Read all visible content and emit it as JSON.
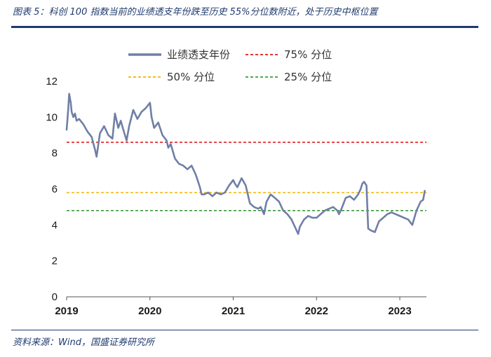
{
  "header": {
    "title": "图表 5：科创 100 指数当前的业绩透支年份跌至历史 55%分位数附近，处于历史中枢位置"
  },
  "footer": {
    "source": "资料来源：Wind，国盛证券研究所"
  },
  "colors": {
    "series": "#6f7fa6",
    "p75": "#e11a1a",
    "p50": "#f5b400",
    "p25": "#3a9a3a",
    "title": "#1f3a6e"
  },
  "chart_data": {
    "type": "line",
    "title": "图表 5：科创 100 指数当前的业绩透支年份跌至历史 55%分位数附近，处于历史中枢位置",
    "xlabel": "",
    "ylabel": "",
    "xlim": [
      2019.0,
      2023.32
    ],
    "ylim": [
      0,
      12
    ],
    "yticks": [
      0,
      2,
      4,
      6,
      8,
      10,
      12
    ],
    "xticks": [
      "2019",
      "2020",
      "2021",
      "2022",
      "2023"
    ],
    "grid": false,
    "legend_position": "top",
    "series": [
      {
        "name": "业绩透支年份",
        "x": [
          2019.0,
          2019.02,
          2019.03,
          2019.05,
          2019.06,
          2019.08,
          2019.1,
          2019.12,
          2019.15,
          2019.2,
          2019.25,
          2019.3,
          2019.34,
          2019.36,
          2019.4,
          2019.45,
          2019.5,
          2019.55,
          2019.58,
          2019.62,
          2019.65,
          2019.68,
          2019.72,
          2019.75,
          2019.8,
          2019.85,
          2019.9,
          2019.95,
          2020.0,
          2020.02,
          2020.05,
          2020.1,
          2020.15,
          2020.2,
          2020.22,
          2020.25,
          2020.3,
          2020.35,
          2020.4,
          2020.45,
          2020.5,
          2020.55,
          2020.6,
          2020.62,
          2020.65,
          2020.7,
          2020.75,
          2020.8,
          2020.85,
          2020.9,
          2020.95,
          2021.0,
          2021.02,
          2021.05,
          2021.08,
          2021.1,
          2021.15,
          2021.2,
          2021.25,
          2021.3,
          2021.33,
          2021.37,
          2021.4,
          2021.45,
          2021.5,
          2021.55,
          2021.6,
          2021.65,
          2021.7,
          2021.72,
          2021.75,
          2021.78,
          2021.8,
          2021.85,
          2021.9,
          2021.95,
          2022.0,
          2022.05,
          2022.1,
          2022.15,
          2022.2,
          2022.25,
          2022.27,
          2022.3,
          2022.35,
          2022.4,
          2022.45,
          2022.5,
          2022.53,
          2022.55,
          2022.57,
          2022.6,
          2022.62,
          2022.65,
          2022.7,
          2022.75,
          2022.8,
          2022.85,
          2022.9,
          2022.95,
          2023.0,
          2023.05,
          2023.1,
          2023.15,
          2023.2,
          2023.25,
          2023.28,
          2023.3
        ],
        "values": [
          9.3,
          10.5,
          11.3,
          10.8,
          10.3,
          10.0,
          10.2,
          9.8,
          9.9,
          9.6,
          9.2,
          8.9,
          8.2,
          7.8,
          9.1,
          9.5,
          9.0,
          8.8,
          10.2,
          9.4,
          9.8,
          9.3,
          8.7,
          9.5,
          10.4,
          9.9,
          10.3,
          10.5,
          10.8,
          10.0,
          9.4,
          9.7,
          9.0,
          8.7,
          8.3,
          8.5,
          7.7,
          7.4,
          7.3,
          7.1,
          7.3,
          6.8,
          6.1,
          5.7,
          5.7,
          5.8,
          5.6,
          5.8,
          5.7,
          5.8,
          6.2,
          6.5,
          6.3,
          6.1,
          6.4,
          6.6,
          6.2,
          5.2,
          5.0,
          4.9,
          5.0,
          4.6,
          5.3,
          5.7,
          5.5,
          5.3,
          4.8,
          4.6,
          4.3,
          4.1,
          3.8,
          3.5,
          3.9,
          4.3,
          4.5,
          4.4,
          4.4,
          4.6,
          4.8,
          4.9,
          5.0,
          4.8,
          4.6,
          4.9,
          5.5,
          5.6,
          5.4,
          5.7,
          6.0,
          6.3,
          6.4,
          6.2,
          3.8,
          3.7,
          3.6,
          4.2,
          4.4,
          4.6,
          4.7,
          4.6,
          4.5,
          4.4,
          4.3,
          4.0,
          4.8,
          5.3,
          5.4,
          5.9
        ]
      },
      {
        "name": "75% 分位",
        "constant": 8.6
      },
      {
        "name": "50% 分位",
        "constant": 5.8
      },
      {
        "name": "25% 分位",
        "constant": 4.8
      }
    ]
  }
}
